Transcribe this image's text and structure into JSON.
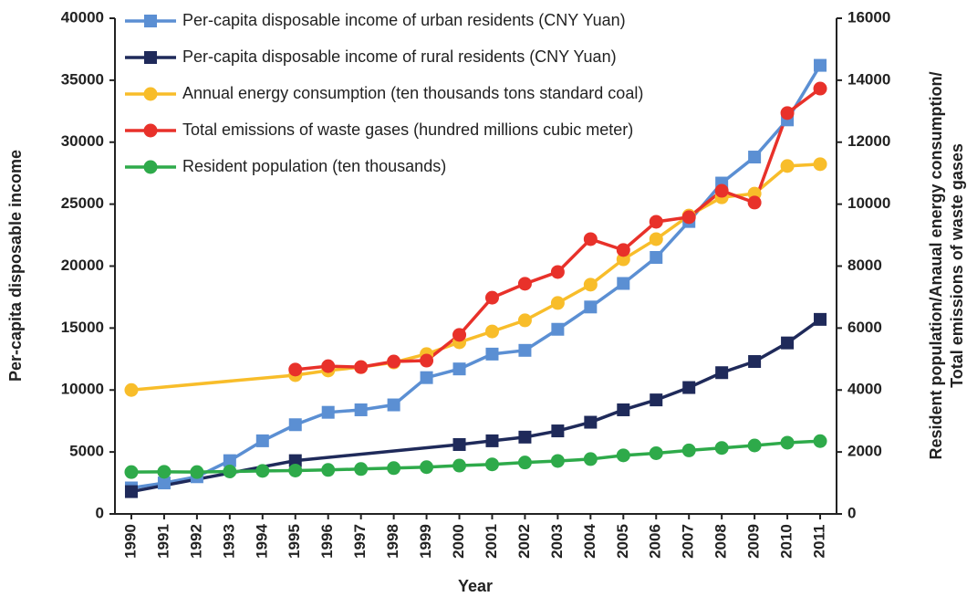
{
  "chart_data": {
    "type": "line",
    "xlabel": "Year",
    "ylabel": "Per-capita disposable income",
    "y2label": [
      "Resident population/Anaual energy consumption/",
      "Total emissions of waste gases"
    ],
    "xlim": [
      1989.5,
      2011.5
    ],
    "xticks": [
      1990,
      1991,
      1992,
      1993,
      1994,
      1995,
      1996,
      1997,
      1998,
      1999,
      2000,
      2001,
      2002,
      2003,
      2004,
      2005,
      2006,
      2007,
      2008,
      2009,
      2010,
      2011
    ],
    "ylim": [
      0,
      40000
    ],
    "yticks": [
      0,
      5000,
      10000,
      15000,
      20000,
      25000,
      30000,
      35000,
      40000
    ],
    "y2lim": [
      0,
      16000
    ],
    "y2ticks": [
      0,
      2000,
      4000,
      6000,
      8000,
      10000,
      12000,
      14000,
      16000
    ],
    "legend": "upper left",
    "series": [
      {
        "name": "Per-capita disposable income of urban residents (CNY Yuan)",
        "color": "#5b8fd3",
        "marker": "square",
        "x": [
          1990,
          1991,
          1992,
          1993,
          1994,
          1995,
          1996,
          1997,
          1998,
          1999,
          2000,
          2001,
          2002,
          2003,
          2004,
          2005,
          2006,
          2007,
          2008,
          2009,
          2010,
          2011
        ],
        "values": [
          2100,
          2500,
          3000,
          4300,
          5900,
          7200,
          8200,
          8400,
          8800,
          11000,
          11700,
          12900,
          13200,
          14900,
          16700,
          18600,
          20700,
          23600,
          26700,
          28800,
          31800,
          36200
        ]
      },
      {
        "name": "Per-capita disposable income of rural residents (CNY Yuan)",
        "color": "#1f2a5a",
        "marker": "square",
        "x": [
          1990,
          1995,
          2000,
          2001,
          2002,
          2003,
          2004,
          2005,
          2006,
          2007,
          2008,
          2009,
          2010,
          2011
        ],
        "values": [
          1800,
          4300,
          5600,
          5900,
          6200,
          6700,
          7400,
          8400,
          9200,
          10200,
          11400,
          12300,
          13800,
          15700
        ]
      },
      {
        "name": "Annual energy consumption (ten thousands tons standard coal)",
        "color": "#f8bd2a",
        "marker": "circle",
        "axis": "y2",
        "x": [
          1990,
          1995,
          1996,
          1997,
          1998,
          1999,
          2000,
          2001,
          2002,
          2003,
          2004,
          2005,
          2006,
          2007,
          2008,
          2009,
          2010,
          2011
        ],
        "values": [
          4000,
          4480,
          4630,
          4740,
          4890,
          5160,
          5540,
          5890,
          6250,
          6810,
          7400,
          8220,
          8870,
          9630,
          10220,
          10340,
          11230,
          11290
        ]
      },
      {
        "name": "Total emissions of waste gases (hundred millions cubic meter)",
        "color": "#e8312a",
        "marker": "circle",
        "axis": "y2",
        "x": [
          1995,
          1996,
          1997,
          1998,
          1999,
          2000,
          2001,
          2002,
          2003,
          2004,
          2005,
          2006,
          2007,
          2008,
          2009,
          2010,
          2011
        ],
        "values": [
          4660,
          4770,
          4740,
          4920,
          4950,
          5780,
          6980,
          7430,
          7810,
          8870,
          8520,
          9430,
          9580,
          10430,
          10050,
          12940,
          13730
        ]
      },
      {
        "name": "Resident population (ten thousands)",
        "color": "#2eaa4a",
        "marker": "circle",
        "axis": "y2",
        "x": [
          1990,
          1991,
          1992,
          1993,
          1994,
          1995,
          1996,
          1997,
          1998,
          1999,
          2000,
          2001,
          2002,
          2003,
          2004,
          2005,
          2006,
          2007,
          2008,
          2009,
          2010,
          2011
        ],
        "values": [
          1350,
          1360,
          1350,
          1370,
          1390,
          1400,
          1420,
          1450,
          1480,
          1510,
          1560,
          1600,
          1660,
          1710,
          1770,
          1890,
          1960,
          2050,
          2130,
          2210,
          2300,
          2350
        ]
      }
    ]
  }
}
